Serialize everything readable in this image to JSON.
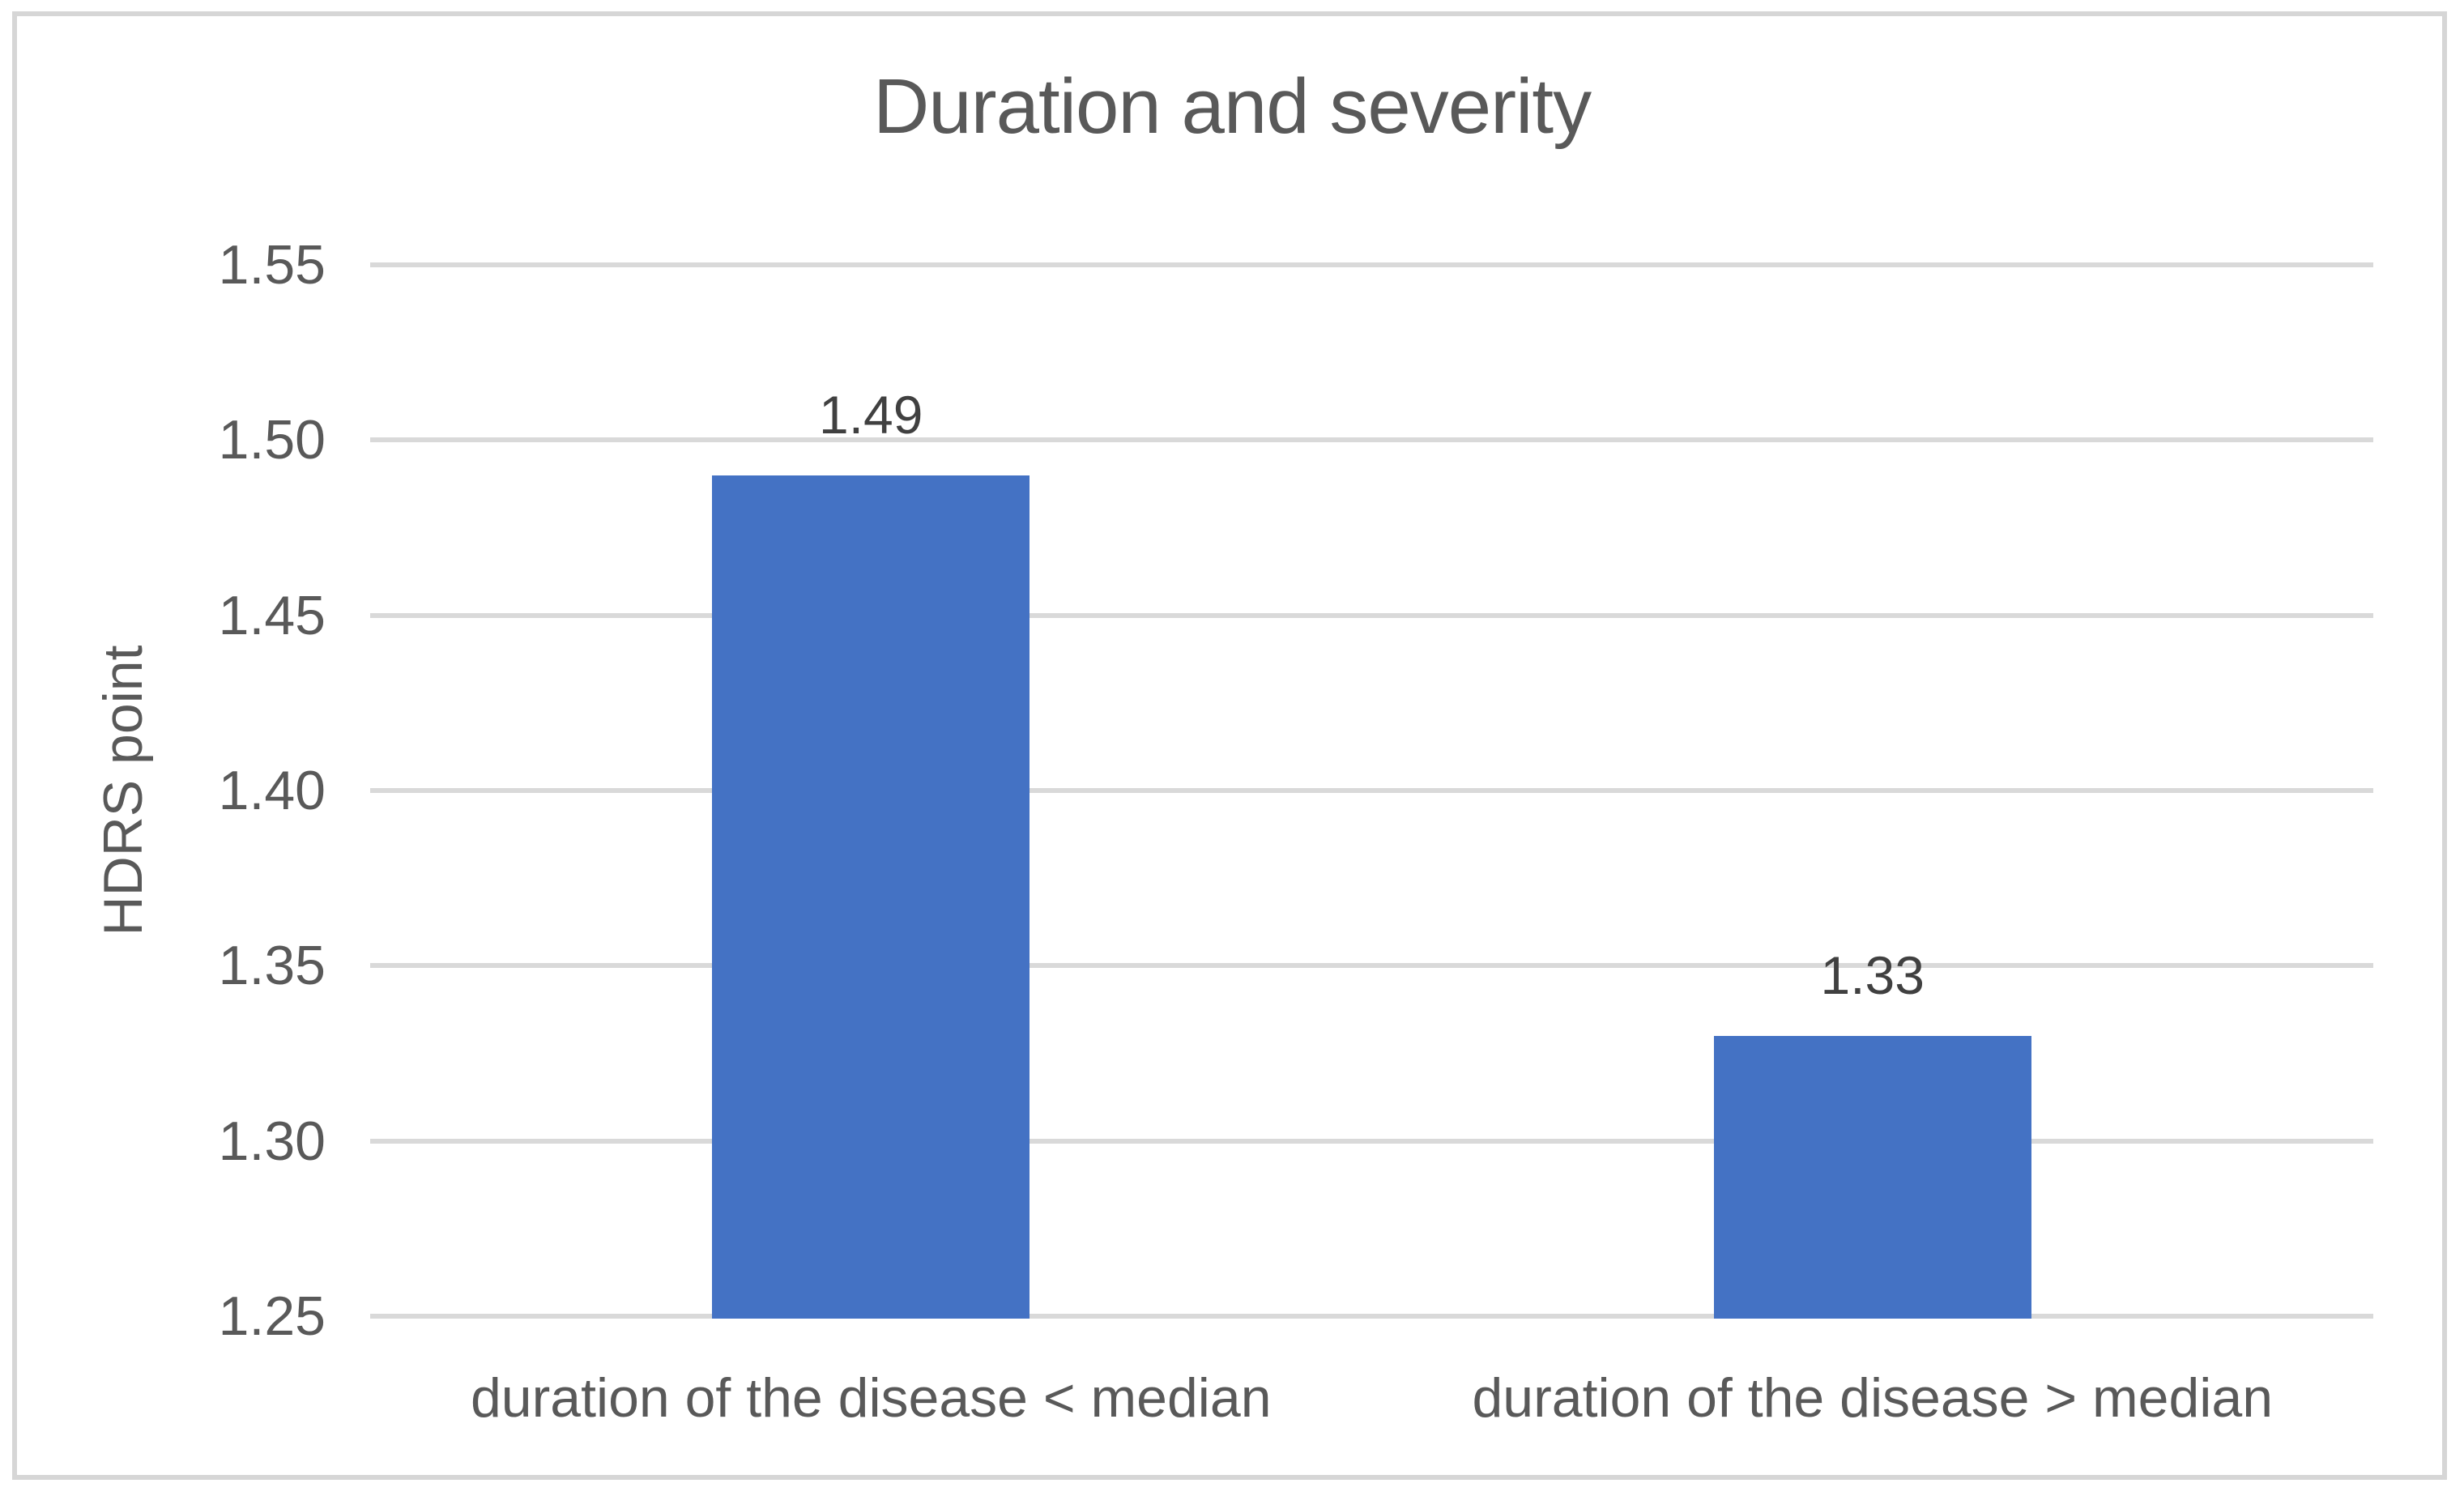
{
  "chart_data": {
    "type": "bar",
    "title": "Duration and severity",
    "ylabel": "HDRS point",
    "xlabel": "",
    "categories": [
      "duration of the disease < median",
      "duration of the disease > median"
    ],
    "values": [
      1.49,
      1.33
    ],
    "data_labels": [
      "1.49",
      "1.33"
    ],
    "ylim": [
      1.25,
      1.55
    ],
    "ytick_step": 0.05,
    "yticks": [
      "1.25",
      "1.30",
      "1.35",
      "1.40",
      "1.45",
      "1.50",
      "1.55"
    ],
    "grid": true,
    "legend": false,
    "colors": {
      "bar": "#4472c4",
      "gridline": "#d9d9d9",
      "frame_border": "#d6d6d6",
      "title_text": "#595959",
      "axis_text": "#595959",
      "data_label_text": "#404040",
      "background": "#ffffff"
    }
  }
}
